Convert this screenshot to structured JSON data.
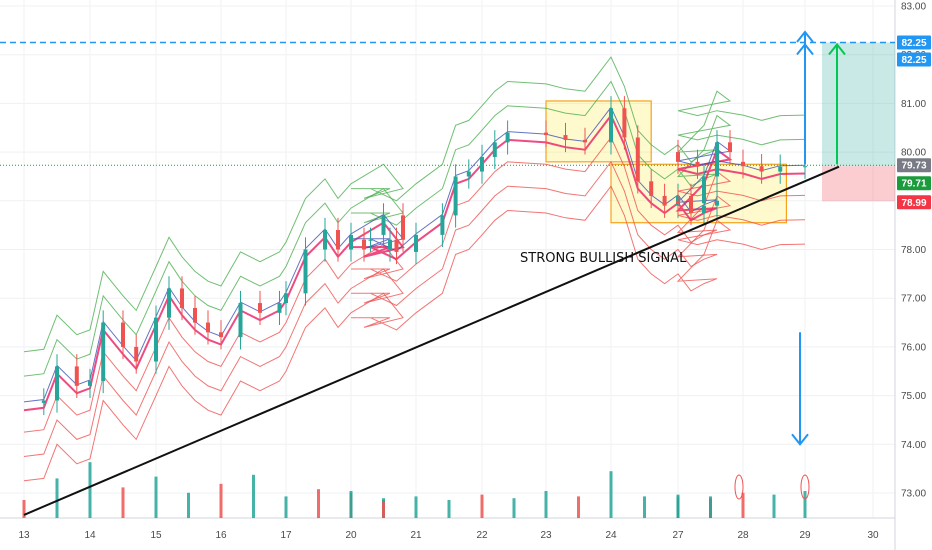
{
  "chart_data": {
    "type": "candlestick",
    "annotation": "STRONG BULLISH SIGNAL",
    "x_tick_labels": [
      "13",
      "14",
      "15",
      "16",
      "17",
      "20",
      "21",
      "22",
      "23",
      "24",
      "27",
      "28",
      "29",
      "30"
    ],
    "y_axis": {
      "ticks": [
        "73.00",
        "74.00",
        "75.00",
        "76.00",
        "77.00",
        "78.00",
        "79.00",
        "80.00",
        "81.00",
        "82.00",
        "83.00"
      ],
      "range": [
        72.5,
        83.1
      ]
    },
    "price_badges": [
      {
        "value": "82.25",
        "color": "#2196f3"
      },
      {
        "value": "82.25",
        "color": "#2196f3"
      },
      {
        "value": "79.73",
        "color": "#787b86"
      },
      {
        "value": "79.71",
        "color": "#1b9c3c"
      },
      {
        "value": "78.99",
        "color": "#f23645"
      }
    ],
    "levels": {
      "target_dashed": 82.25,
      "current_dotted": 79.71,
      "stop": 78.99
    },
    "trendline": {
      "from": [
        "13",
        72.55
      ],
      "to": [
        "29.5",
        79.7
      ]
    },
    "ranges": [
      {
        "from": "23",
        "to": "24.6",
        "low": 79.8,
        "high": 81.05
      },
      {
        "from": "24",
        "to": "28.7",
        "low": 78.55,
        "high": 79.75
      }
    ],
    "series": [
      {
        "name": "price",
        "points": [
          [
            13,
            74.85
          ],
          [
            13.3,
            74.9
          ],
          [
            13.5,
            75.6
          ],
          [
            13.8,
            75.2
          ],
          [
            14,
            75.3
          ],
          [
            14.2,
            76.5
          ],
          [
            14.5,
            76.0
          ],
          [
            14.7,
            75.7
          ],
          [
            15,
            76.6
          ],
          [
            15.2,
            77.2
          ],
          [
            15.4,
            76.8
          ],
          [
            15.6,
            76.5
          ],
          [
            15.8,
            76.3
          ],
          [
            16,
            76.2
          ],
          [
            16.3,
            76.9
          ],
          [
            16.6,
            76.7
          ],
          [
            16.9,
            76.9
          ],
          [
            17,
            77.1
          ],
          [
            17.3,
            78.0
          ],
          [
            17.6,
            78.4
          ],
          [
            17.8,
            78.0
          ],
          [
            18,
            78.3
          ],
          [
            18.5,
            78.7
          ],
          [
            18.8,
            78.2
          ],
          [
            19.2,
            78.0
          ],
          [
            19.6,
            78.2
          ],
          [
            20,
            78.2
          ],
          [
            20.3,
            78.2
          ],
          [
            20.7,
            77.95
          ],
          [
            21,
            78.3
          ],
          [
            21.4,
            78.7
          ],
          [
            21.6,
            79.5
          ],
          [
            21.8,
            79.6
          ],
          [
            22,
            79.9
          ],
          [
            22.2,
            80.2
          ],
          [
            22.4,
            80.4
          ],
          [
            23,
            80.35
          ],
          [
            23.3,
            80.25
          ],
          [
            23.6,
            80.2
          ],
          [
            24,
            80.9
          ],
          [
            24.2,
            80.3
          ],
          [
            24.4,
            79.4
          ],
          [
            24.6,
            79.1
          ],
          [
            24.8,
            78.9
          ],
          [
            25,
            79.1
          ],
          [
            25.2,
            78.75
          ],
          [
            25.4,
            78.9
          ],
          [
            25.6,
            79.0
          ],
          [
            26,
            78.95
          ],
          [
            26.4,
            79.5
          ],
          [
            26.6,
            80.2
          ],
          [
            26.8,
            80.0
          ],
          [
            27,
            79.8
          ],
          [
            27.3,
            79.7
          ],
          [
            27.6,
            79.8
          ],
          [
            28,
            79.71
          ],
          [
            28.3,
            79.6
          ],
          [
            28.6,
            79.7
          ],
          [
            29,
            79.71
          ]
        ]
      },
      {
        "name": "volume",
        "points": [
          [
            13,
            1.0
          ],
          [
            13.5,
            2.2
          ],
          [
            14,
            3.1
          ],
          [
            14.5,
            1.7
          ],
          [
            15,
            2.3
          ],
          [
            15.5,
            1.4
          ],
          [
            16,
            1.9
          ],
          [
            16.5,
            2.4
          ],
          [
            17,
            1.2
          ],
          [
            17.5,
            1.6
          ],
          [
            18,
            1.5
          ],
          [
            18.5,
            1.0
          ],
          [
            19,
            1.3
          ],
          [
            19.5,
            1.1
          ],
          [
            20,
            1.4
          ],
          [
            20.5,
            0.9
          ],
          [
            21,
            1.2
          ],
          [
            21.5,
            1.0
          ],
          [
            22,
            1.3
          ],
          [
            22.5,
            1.1
          ],
          [
            23,
            1.5
          ],
          [
            23.5,
            1.2
          ],
          [
            24,
            2.6
          ],
          [
            24.5,
            1.2
          ],
          [
            25,
            1.1
          ],
          [
            25.5,
            1.0
          ],
          [
            26,
            1.2
          ],
          [
            26.5,
            1.1
          ],
          [
            27,
            1.3
          ],
          [
            27.5,
            1.2
          ],
          [
            28,
            1.4
          ],
          [
            28.5,
            1.3
          ],
          [
            29,
            1.5
          ]
        ]
      }
    ]
  }
}
